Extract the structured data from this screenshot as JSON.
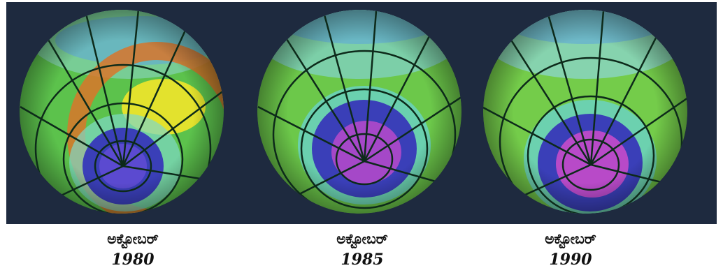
{
  "figure": {
    "colors": {
      "background": "#1e2a3f",
      "ozone_high": "#f2e62a",
      "ozone_mid": "#55c24a",
      "ozone_low": "#3a3fb8",
      "ozone_hole": "#b048c8"
    },
    "panels": [
      {
        "month": "ಅಕ್ಟೋಬರ್",
        "year": "1980"
      },
      {
        "month": "ಅಕ್ಟೋಬರ್",
        "year": "1985"
      },
      {
        "month": "ಅಕ್ಟೋಬರ್",
        "year": "1990"
      }
    ]
  }
}
